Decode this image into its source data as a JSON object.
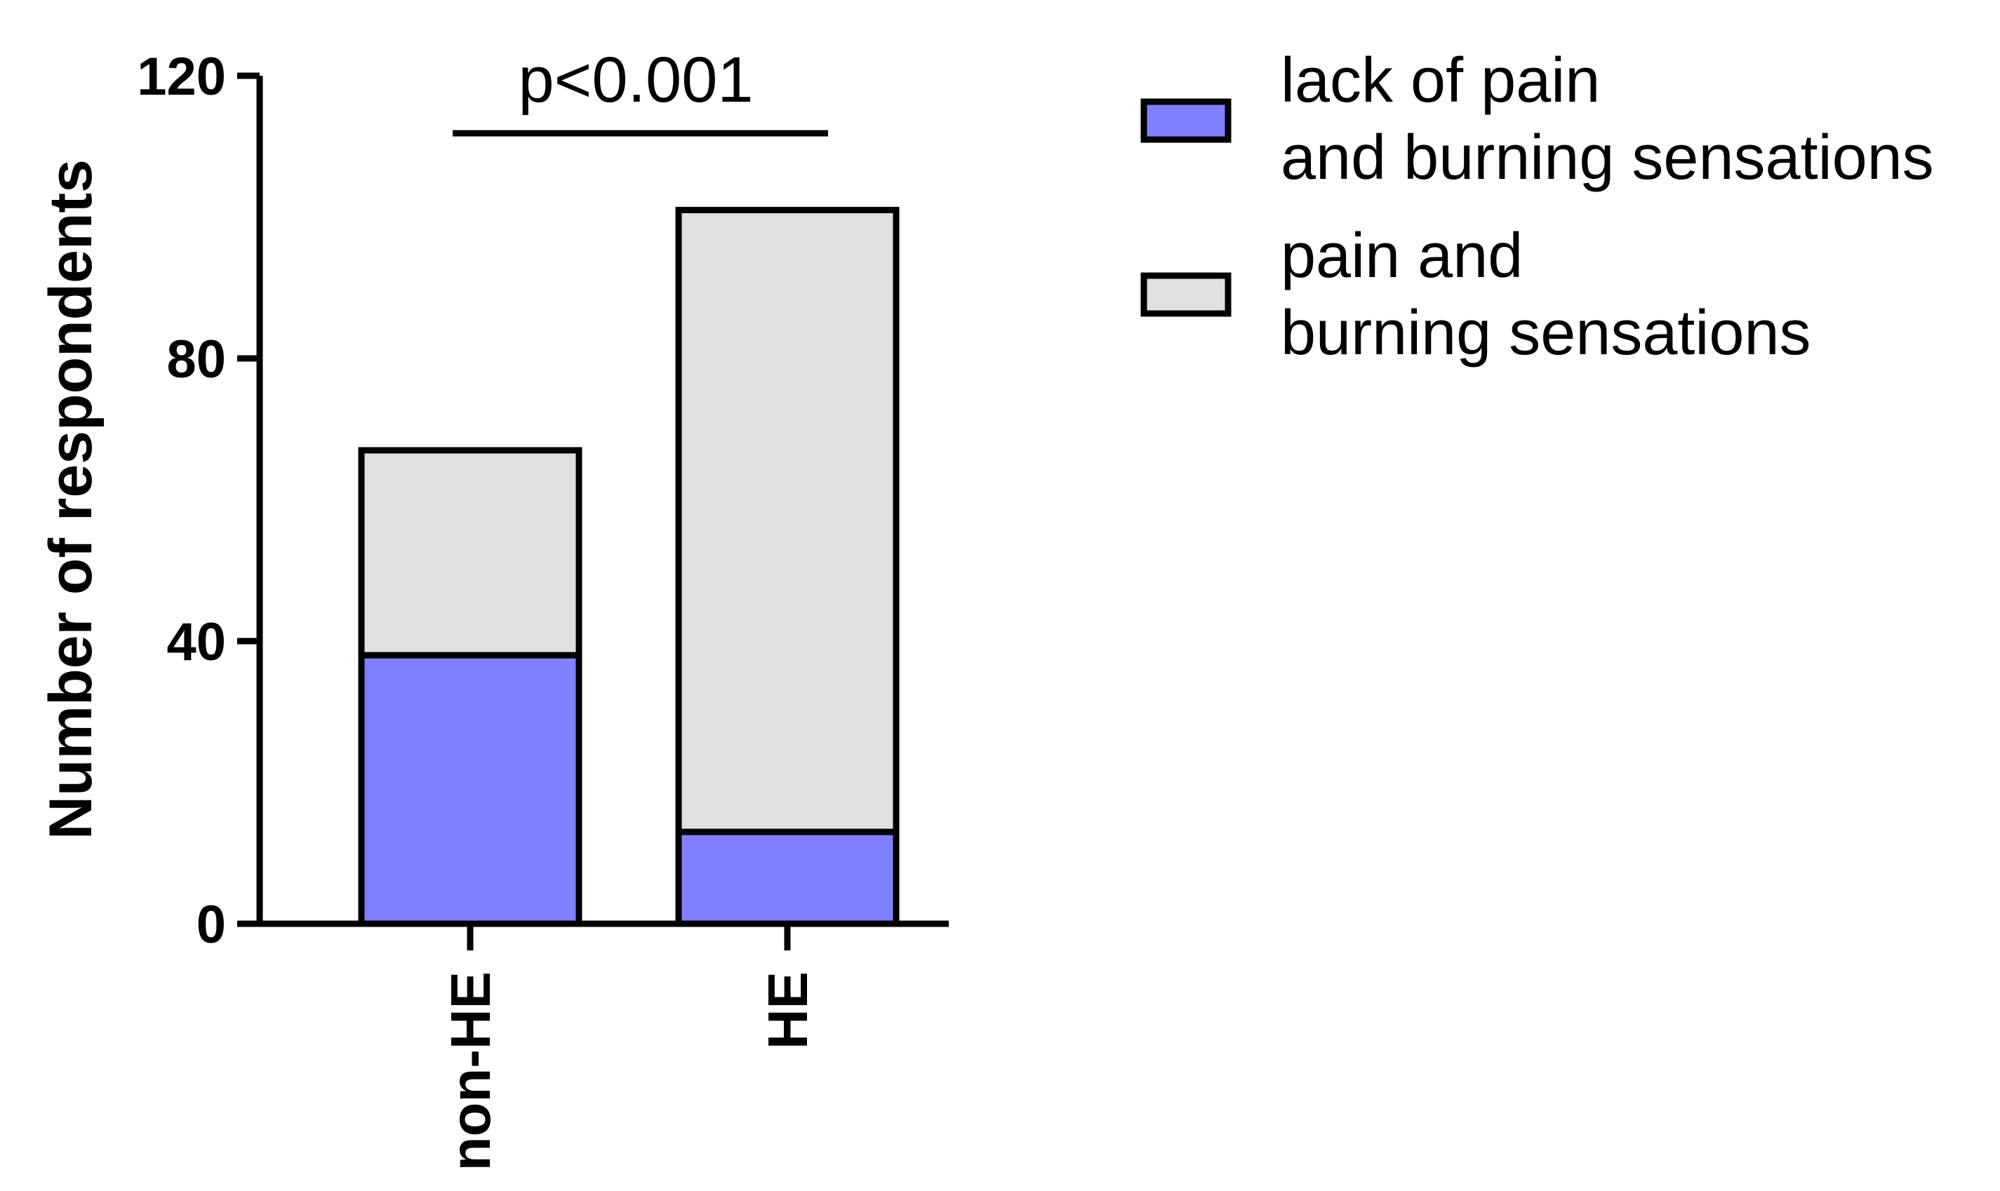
{
  "chart_data": {
    "type": "bar",
    "stacked": true,
    "categories": [
      "non-HE",
      "HE"
    ],
    "series": [
      {
        "name": "lack of pain and burning sensations",
        "legend_lines": [
          "lack of pain",
          "and burning sensations"
        ],
        "color": "#8080ff",
        "values": [
          38,
          13
        ]
      },
      {
        "name": "pain and burning sensations",
        "legend_lines": [
          "pain and",
          "burning sensations"
        ],
        "color": "#e0e0e0",
        "values": [
          29,
          88
        ]
      }
    ],
    "ylabel": "Number of respondents",
    "yticks": [
      0,
      40,
      80,
      120
    ],
    "ylim": [
      0,
      120
    ],
    "annotation": "p<0.001",
    "grid": false,
    "legend_position": "right"
  }
}
